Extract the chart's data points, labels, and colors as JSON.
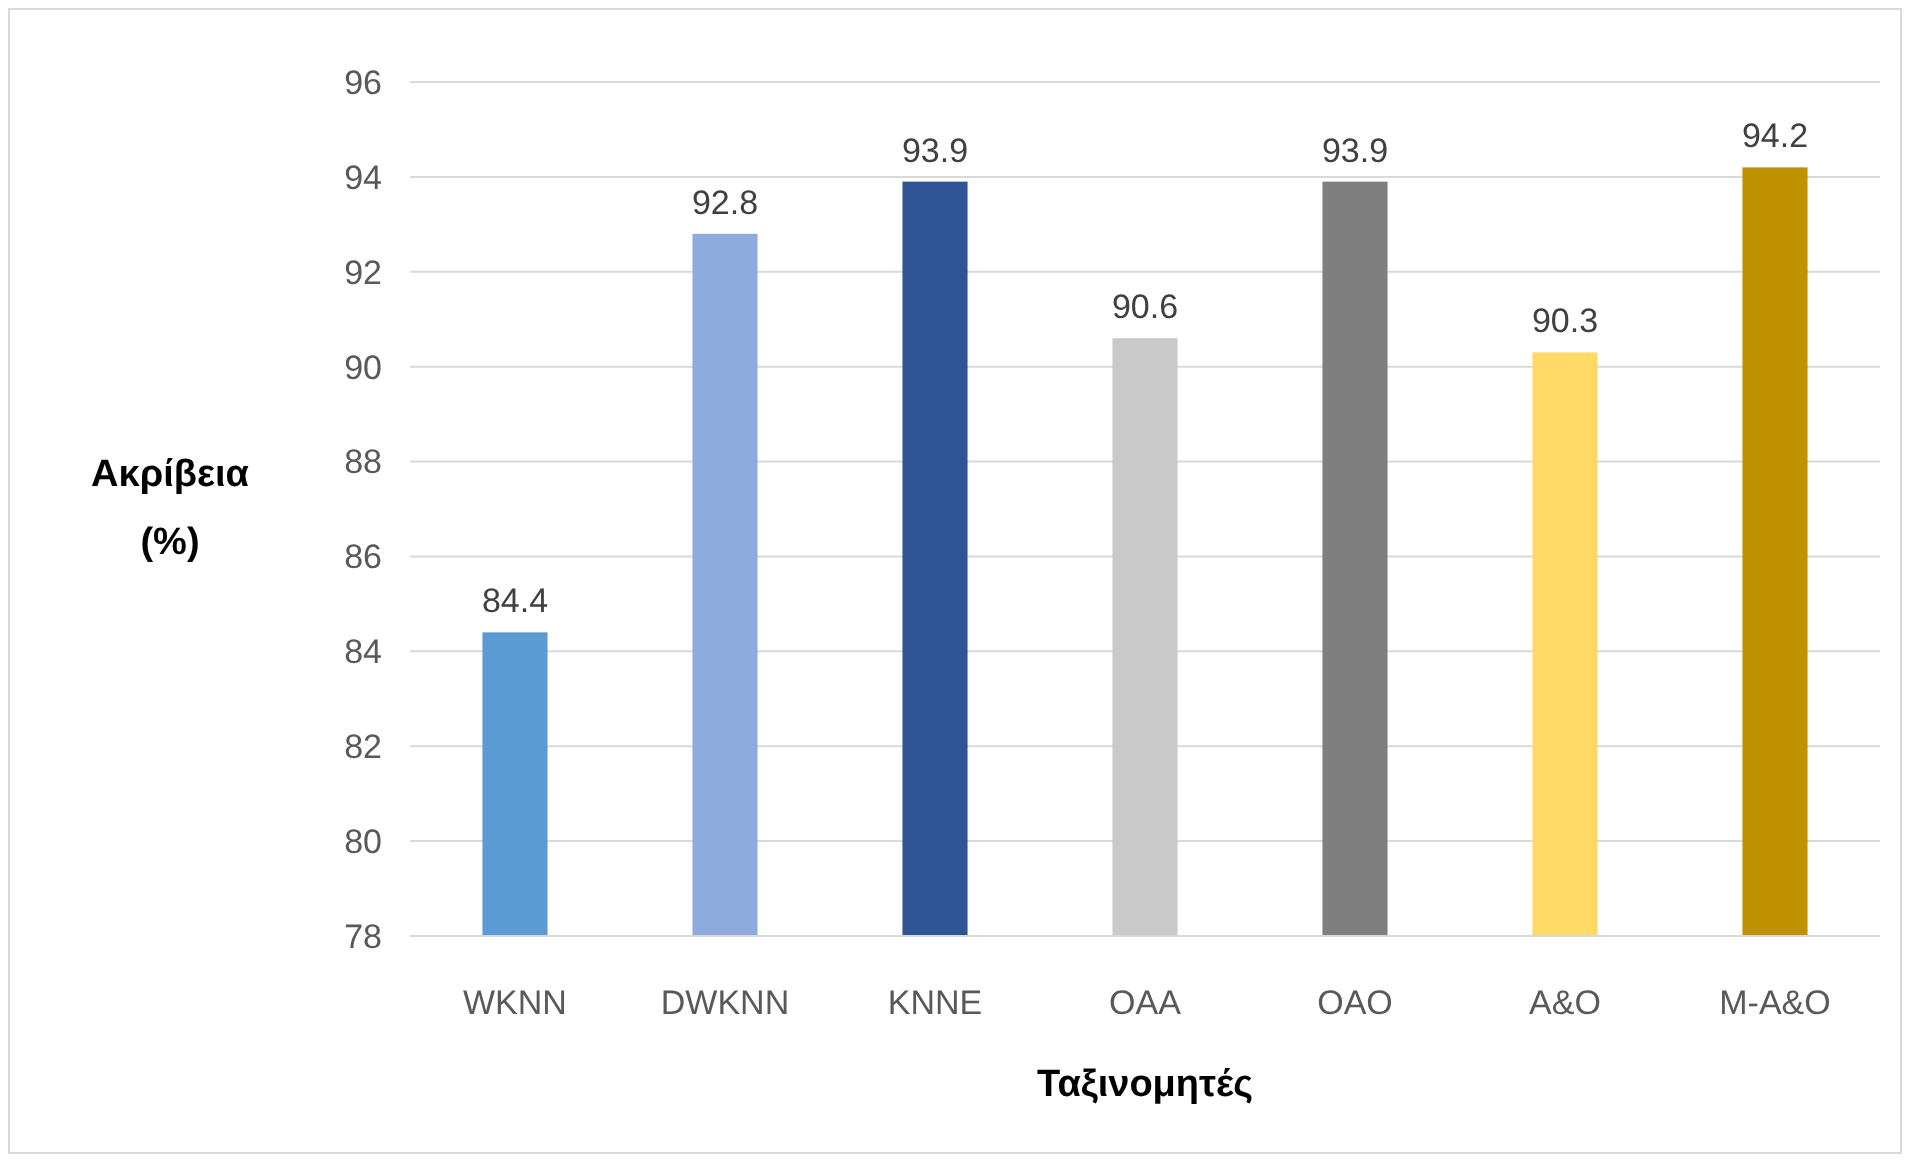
{
  "chart_data": {
    "type": "bar",
    "xlabel": "Ταξινομητές",
    "ylabel": "Ακρίβεια (%)",
    "categories": [
      "WKNN",
      "DWKNN",
      "KNNE",
      "OAA",
      "OAO",
      "A&O",
      "M-A&O"
    ],
    "values": [
      84.4,
      92.8,
      93.9,
      90.6,
      93.9,
      90.3,
      94.2
    ],
    "colors": [
      "#5b9bd5",
      "#8faadc",
      "#2f5597",
      "#c9c9c9",
      "#7f7f7f",
      "#ffd966",
      "#bf9000"
    ],
    "ylim": [
      78,
      96
    ],
    "yticks": [
      78,
      80,
      82,
      84,
      86,
      88,
      90,
      92,
      94,
      96
    ],
    "grid": "y",
    "data_labels": true
  }
}
